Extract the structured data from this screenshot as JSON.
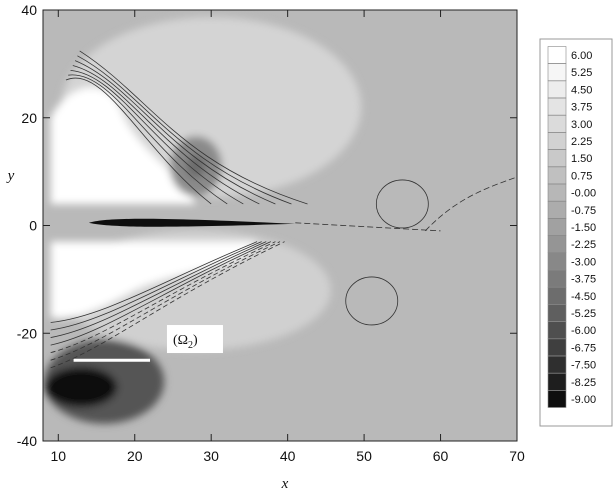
{
  "chart_data": {
    "type": "heatmap",
    "title": "",
    "xlabel": "x",
    "ylabel": "y",
    "xlim": [
      8,
      70
    ],
    "ylim": [
      -40,
      40
    ],
    "x_ticks": [
      "10",
      "20",
      "30",
      "40",
      "50",
      "60",
      "70"
    ],
    "x_tick_values": [
      10,
      20,
      30,
      40,
      50,
      60,
      70
    ],
    "y_ticks": [
      "40",
      "20",
      "0",
      "-20",
      "-40"
    ],
    "y_tick_values": [
      40,
      20,
      0,
      -20,
      -40
    ],
    "legend_position": "right",
    "legend_levels": [
      "6.00",
      "5.25",
      "4.50",
      "3.75",
      "3.00",
      "2.25",
      "1.50",
      "0.75",
      "-0.00",
      "-0.75",
      "-1.50",
      "-2.25",
      "-3.00",
      "-3.75",
      "-4.50",
      "-5.25",
      "-6.00",
      "-6.75",
      "-7.50",
      "-8.25",
      "-9.00"
    ],
    "legend_colors": [
      "#ffffff",
      "#f6f6f6",
      "#ededed",
      "#e4e4e4",
      "#dbdbdb",
      "#d2d2d2",
      "#c9c9c9",
      "#c0c0c0",
      "#b7b7b7",
      "#acacac",
      "#a1a1a1",
      "#959595",
      "#888888",
      "#7b7b7b",
      "#6d6d6d",
      "#5f5f5f",
      "#4f4f4f",
      "#3f3f3f",
      "#2f2f2f",
      "#1e1e1e",
      "#0e0e0e"
    ],
    "annotations": [
      {
        "text": "(Ω",
        "subscript": "2",
        "suffix": ")",
        "x": 25,
        "y": -22,
        "line_x": [
          12,
          22
        ],
        "line_y": -25
      }
    ],
    "field_features": [
      {
        "name": "jet-core",
        "x_range": [
          14,
          24
        ],
        "y": 0.5,
        "level": "-9.00"
      },
      {
        "name": "upper-bright-region",
        "x_range": [
          9,
          30
        ],
        "y_range": [
          3,
          30
        ],
        "level": "6.00"
      },
      {
        "name": "lower-bright-region",
        "x_range": [
          9,
          36
        ],
        "y_range": [
          -18,
          -3
        ],
        "level": "6.00"
      },
      {
        "name": "lower-dark-lobe",
        "x_range": [
          9,
          22
        ],
        "y_range": [
          -38,
          -20
        ],
        "level": "-9.00"
      },
      {
        "name": "dark-pocket-upper",
        "x": 28,
        "y": 11,
        "level": "-4.50"
      },
      {
        "name": "contour-loop",
        "x": 51,
        "y": -14,
        "level": "0.75"
      },
      {
        "name": "contour-loop",
        "x": 55,
        "y": 4,
        "level": "0.75"
      }
    ]
  }
}
